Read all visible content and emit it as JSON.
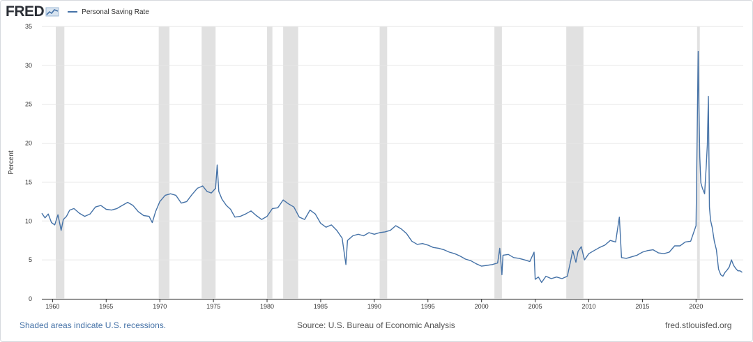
{
  "header": {
    "logo_text": "FRED",
    "legend_label": "Personal Saving Rate",
    "series_color": "#4572a7"
  },
  "footer": {
    "left": "Shaded areas indicate U.S. recessions.",
    "center": "Source: U.S. Bureau of Economic Analysis",
    "right": "fred.stlouisfed.org"
  },
  "chart_data": {
    "type": "line",
    "title": "Personal Saving Rate",
    "xlabel": "",
    "ylabel": "Percent",
    "xlim": [
      1959.0,
      2024.4
    ],
    "ylim": [
      0,
      35
    ],
    "grid": true,
    "legend": "top-left",
    "x_ticks": [
      1960,
      1965,
      1970,
      1975,
      1980,
      1985,
      1990,
      1995,
      2000,
      2005,
      2010,
      2015,
      2020
    ],
    "y_ticks": [
      0,
      5,
      10,
      15,
      20,
      25,
      30,
      35
    ],
    "recessions": [
      [
        1960.3,
        1961.1
      ],
      [
        1969.9,
        1970.9
      ],
      [
        1973.9,
        1975.2
      ],
      [
        1980.0,
        1980.5
      ],
      [
        1981.5,
        1982.9
      ],
      [
        1990.5,
        1991.2
      ],
      [
        2001.2,
        2001.9
      ],
      [
        2007.9,
        2009.5
      ],
      [
        2020.1,
        2020.35
      ]
    ],
    "series": [
      {
        "name": "Personal Saving Rate",
        "units": "Percent",
        "x": [
          1959.0,
          1959.3,
          1959.6,
          1959.9,
          1960.2,
          1960.5,
          1960.8,
          1961.0,
          1961.3,
          1961.6,
          1962.0,
          1962.5,
          1963.0,
          1963.5,
          1964.0,
          1964.5,
          1965.0,
          1965.5,
          1966.0,
          1966.5,
          1967.0,
          1967.5,
          1968.0,
          1968.5,
          1969.0,
          1969.3,
          1969.6,
          1970.0,
          1970.5,
          1971.0,
          1971.5,
          1972.0,
          1972.5,
          1973.0,
          1973.5,
          1974.0,
          1974.4,
          1974.8,
          1975.2,
          1975.35,
          1975.5,
          1975.8,
          1976.2,
          1976.6,
          1977.0,
          1977.5,
          1978.0,
          1978.5,
          1979.0,
          1979.5,
          1980.0,
          1980.5,
          1981.0,
          1981.5,
          1982.0,
          1982.5,
          1983.0,
          1983.5,
          1984.0,
          1984.5,
          1985.0,
          1985.5,
          1986.0,
          1986.5,
          1987.0,
          1987.35,
          1987.5,
          1988.0,
          1988.5,
          1989.0,
          1989.5,
          1990.0,
          1990.5,
          1991.0,
          1991.5,
          1992.0,
          1992.5,
          1993.0,
          1993.5,
          1994.0,
          1994.5,
          1995.0,
          1995.5,
          1996.0,
          1996.5,
          1997.0,
          1997.5,
          1998.0,
          1998.5,
          1999.0,
          1999.5,
          2000.0,
          2000.5,
          2001.0,
          2001.5,
          2001.7,
          2001.9,
          2002.0,
          2002.5,
          2003.0,
          2003.5,
          2004.0,
          2004.5,
          2004.9,
          2005.0,
          2005.3,
          2005.6,
          2006.0,
          2006.5,
          2007.0,
          2007.5,
          2008.0,
          2008.3,
          2008.5,
          2008.8,
          2009.0,
          2009.3,
          2009.6,
          2010.0,
          2010.5,
          2011.0,
          2011.5,
          2012.0,
          2012.5,
          2012.85,
          2012.92,
          2013.05,
          2013.5,
          2014.0,
          2014.5,
          2015.0,
          2015.5,
          2016.0,
          2016.5,
          2017.0,
          2017.5,
          2018.0,
          2018.5,
          2019.0,
          2019.5,
          2020.0,
          2020.2,
          2020.27,
          2020.35,
          2020.45,
          2020.6,
          2020.8,
          2020.95,
          2021.05,
          2021.15,
          2021.25,
          2021.35,
          2021.5,
          2021.7,
          2021.9,
          2022.1,
          2022.3,
          2022.5,
          2022.7,
          2022.9,
          2023.1,
          2023.3,
          2023.5,
          2023.7,
          2023.9,
          2024.1,
          2024.3
        ],
        "values": [
          11.0,
          10.4,
          10.9,
          9.8,
          9.5,
          10.8,
          8.8,
          10.2,
          10.6,
          11.4,
          11.6,
          11.0,
          10.6,
          10.9,
          11.8,
          12.0,
          11.5,
          11.4,
          11.6,
          12.0,
          12.4,
          12.0,
          11.2,
          10.7,
          10.6,
          9.8,
          11.2,
          12.5,
          13.3,
          13.5,
          13.3,
          12.3,
          12.5,
          13.4,
          14.2,
          14.5,
          13.8,
          13.6,
          14.2,
          17.2,
          13.8,
          12.8,
          12.0,
          11.5,
          10.5,
          10.6,
          10.9,
          11.3,
          10.7,
          10.2,
          10.6,
          11.6,
          11.7,
          12.7,
          12.2,
          11.8,
          10.5,
          10.2,
          11.4,
          10.9,
          9.7,
          9.2,
          9.5,
          8.8,
          7.8,
          4.4,
          7.5,
          8.1,
          8.3,
          8.1,
          8.5,
          8.3,
          8.5,
          8.6,
          8.8,
          9.4,
          9.0,
          8.4,
          7.4,
          7.0,
          7.1,
          6.9,
          6.6,
          6.5,
          6.3,
          6.0,
          5.8,
          5.5,
          5.1,
          4.9,
          4.5,
          4.2,
          4.3,
          4.4,
          4.6,
          6.5,
          3.1,
          5.6,
          5.7,
          5.3,
          5.2,
          5.0,
          4.8,
          6.0,
          2.5,
          2.8,
          2.1,
          2.9,
          2.6,
          2.8,
          2.6,
          2.9,
          4.8,
          6.2,
          4.7,
          6.1,
          6.7,
          5.0,
          5.8,
          6.2,
          6.6,
          6.9,
          7.5,
          7.3,
          10.5,
          8.7,
          5.3,
          5.2,
          5.4,
          5.6,
          6.0,
          6.2,
          6.3,
          5.9,
          5.8,
          6.0,
          6.8,
          6.8,
          7.3,
          7.4,
          9.4,
          31.8,
          24.5,
          18.2,
          14.9,
          14.2,
          13.5,
          17.0,
          19.8,
          26.0,
          11.8,
          10.1,
          9.2,
          7.4,
          6.3,
          3.8,
          3.1,
          2.9,
          3.4,
          3.7,
          4.1,
          5.0,
          4.3,
          3.9,
          3.6,
          3.6,
          3.4
        ]
      }
    ]
  }
}
